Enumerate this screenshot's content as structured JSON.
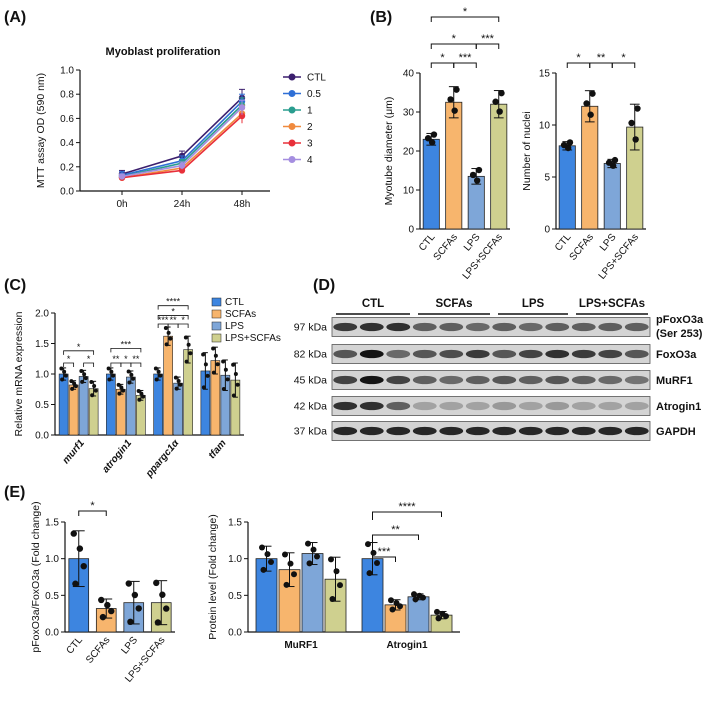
{
  "colors": {
    "ctl": "#3d85e0",
    "scfa": "#f7b56d",
    "lps": "#7ea6d8",
    "lps_scfa": "#cfd08f",
    "l_ctl": "#3b1f6e",
    "l_05": "#2f6fd6",
    "l_1": "#2a9d8f",
    "l_2": "#f08a3e",
    "l_3": "#e8303a",
    "l_4": "#a58ee0"
  },
  "panels": {
    "A": "(A)",
    "B": "(B)",
    "C": "(C)",
    "D": "(D)",
    "E": "(E)"
  },
  "chart_data": [
    {
      "id": "A",
      "type": "line",
      "title": "Myoblast proliferation",
      "xlabel": "",
      "ylabel": "MTT assay OD (590 nm)",
      "categories": [
        "0h",
        "24h",
        "48h"
      ],
      "ylim": [
        0,
        1.0
      ],
      "yticks": [
        "0.0",
        "0.2",
        "0.4",
        "0.6",
        "0.8",
        "1.0"
      ],
      "series": [
        {
          "name": "CTL",
          "color": "#3b1f6e",
          "values": [
            0.14,
            0.29,
            0.77
          ],
          "err": [
            0.03,
            0.04,
            0.07
          ]
        },
        {
          "name": "0.5",
          "color": "#2f6fd6",
          "values": [
            0.13,
            0.25,
            0.74
          ],
          "err": [
            0.03,
            0.04,
            0.06
          ]
        },
        {
          "name": "1",
          "color": "#2a9d8f",
          "values": [
            0.12,
            0.23,
            0.71
          ],
          "err": [
            0.02,
            0.03,
            0.06
          ]
        },
        {
          "name": "2",
          "color": "#f08a3e",
          "values": [
            0.11,
            0.19,
            0.64
          ],
          "err": [
            0.02,
            0.03,
            0.07
          ]
        },
        {
          "name": "3",
          "color": "#e8303a",
          "values": [
            0.11,
            0.17,
            0.62
          ],
          "err": [
            0.02,
            0.02,
            0.06
          ]
        },
        {
          "name": "4",
          "color": "#a58ee0",
          "values": [
            0.12,
            0.21,
            0.69
          ],
          "err": [
            0.02,
            0.03,
            0.06
          ]
        }
      ]
    },
    {
      "id": "B1",
      "type": "bar",
      "ylabel": "Myotube diameter (μm)",
      "categories": [
        "CTL",
        "SCFAs",
        "LPS",
        "LPS+SCFAs"
      ],
      "values": [
        23,
        32.5,
        13.5,
        32
      ],
      "err": [
        1.5,
        4,
        2,
        3.5
      ],
      "ylim": [
        0,
        40
      ],
      "yticks": [
        "0",
        "10",
        "20",
        "30",
        "40"
      ],
      "sig": [
        {
          "a": 0,
          "b": 1,
          "label": "*"
        },
        {
          "a": 1,
          "b": 2,
          "label": "***"
        },
        {
          "a": 0,
          "b": 2,
          "label": "*"
        },
        {
          "a": 2,
          "b": 3,
          "label": "***"
        },
        {
          "a": 0,
          "b": 3,
          "label": "*"
        }
      ]
    },
    {
      "id": "B2",
      "type": "bar",
      "ylabel": "Number of nuclei",
      "categories": [
        "CTL",
        "SCFAs",
        "LPS",
        "LPS+SCFAs"
      ],
      "values": [
        8,
        11.8,
        6.3,
        9.8
      ],
      "err": [
        0.4,
        1.5,
        0.4,
        2.2
      ],
      "ylim": [
        0,
        15
      ],
      "yticks": [
        "0",
        "5",
        "10",
        "15"
      ],
      "sig": [
        {
          "a": 0,
          "b": 1,
          "label": "*"
        },
        {
          "a": 1,
          "b": 2,
          "label": "**"
        },
        {
          "a": 2,
          "b": 3,
          "label": "*"
        }
      ]
    },
    {
      "id": "C",
      "type": "bar",
      "ylabel": "Relative mRNA expression",
      "categories": [
        "murf1",
        "atrogin1",
        "ppargc1α",
        "tfam"
      ],
      "ylim": [
        0,
        2.0
      ],
      "yticks": [
        "0.0",
        "0.5",
        "1.0",
        "1.5",
        "2.0"
      ],
      "series": [
        {
          "name": "CTL",
          "values": [
            1.0,
            1.0,
            1.0,
            1.05
          ]
        },
        {
          "name": "SCFAs",
          "values": [
            0.82,
            0.75,
            1.62,
            1.22
          ]
        },
        {
          "name": "LPS",
          "values": [
            0.96,
            0.95,
            0.85,
            0.98
          ]
        },
        {
          "name": "LPS+SCFAs",
          "values": [
            0.76,
            0.65,
            1.4,
            0.9
          ]
        }
      ],
      "err": [
        [
          0.1,
          0.1,
          0.1,
          0.3
        ],
        [
          0.07,
          0.08,
          0.15,
          0.22
        ],
        [
          0.1,
          0.1,
          0.1,
          0.25
        ],
        [
          0.12,
          0.08,
          0.22,
          0.28
        ]
      ],
      "sig_labels": [
        "*",
        "*",
        "*",
        "**",
        "*",
        "**",
        "***",
        "***",
        "*",
        "**",
        "*",
        "****"
      ]
    },
    {
      "id": "E1",
      "type": "bar",
      "ylabel": "pFoxO3a/FoxO3a (Fold change)",
      "categories": [
        "CTL",
        "SCFAs",
        "LPS",
        "LPS+SCFAs"
      ],
      "values": [
        1.0,
        0.32,
        0.4,
        0.4
      ],
      "err": [
        0.38,
        0.13,
        0.29,
        0.3
      ],
      "ylim": [
        0,
        1.5
      ],
      "yticks": [
        "0.0",
        "0.5",
        "1.0",
        "1.5"
      ],
      "sig": [
        {
          "a": 0,
          "b": 1,
          "label": "*"
        }
      ]
    },
    {
      "id": "E2",
      "type": "bar",
      "ylabel": "Protein level (Fold change)",
      "categories": [
        "MuRF1",
        "Atrogin1"
      ],
      "series": [
        {
          "name": "CTL",
          "values": [
            1.0,
            1.0
          ]
        },
        {
          "name": "SCFAs",
          "values": [
            0.85,
            0.37
          ]
        },
        {
          "name": "LPS",
          "values": [
            1.07,
            0.48
          ]
        },
        {
          "name": "LPS+SCFAs",
          "values": [
            0.72,
            0.23
          ]
        }
      ],
      "err": [
        [
          0.17,
          0.22
        ],
        [
          0.23,
          0.07
        ],
        [
          0.15,
          0.04
        ],
        [
          0.3,
          0.05
        ]
      ],
      "ylim": [
        0,
        1.5
      ],
      "yticks": [
        "0.0",
        "0.5",
        "1.0",
        "1.5"
      ],
      "sig_labels": [
        "***",
        "**",
        "****"
      ]
    }
  ],
  "blot": {
    "groups": [
      "CTL",
      "SCFAs",
      "LPS",
      "LPS+SCFAs"
    ],
    "rows": [
      {
        "kda": "97 kDa",
        "name": "pFoxO3a",
        "name2": "(Ser 253)"
      },
      {
        "kda": "82 kDa",
        "name": "FoxO3a",
        "name2": ""
      },
      {
        "kda": "45 kDa",
        "name": "MuRF1",
        "name2": ""
      },
      {
        "kda": "42 kDa",
        "name": "Atrogin1",
        "name2": ""
      },
      {
        "kda": "37 kDa",
        "name": "GAPDH",
        "name2": ""
      }
    ],
    "intensity": [
      [
        0.75,
        0.8,
        0.8,
        0.55,
        0.55,
        0.5,
        0.55,
        0.5,
        0.55,
        0.55,
        0.55,
        0.55
      ],
      [
        0.6,
        0.95,
        0.5,
        0.6,
        0.65,
        0.75,
        0.6,
        0.7,
        0.8,
        0.75,
        0.7,
        0.6
      ],
      [
        0.7,
        0.95,
        0.7,
        0.55,
        0.5,
        0.55,
        0.6,
        0.55,
        0.6,
        0.55,
        0.5,
        0.45
      ],
      [
        0.8,
        0.8,
        0.55,
        0.2,
        0.2,
        0.2,
        0.25,
        0.2,
        0.25,
        0.2,
        0.2,
        0.2
      ],
      [
        0.85,
        0.85,
        0.85,
        0.85,
        0.85,
        0.85,
        0.85,
        0.85,
        0.85,
        0.85,
        0.85,
        0.85
      ]
    ]
  }
}
